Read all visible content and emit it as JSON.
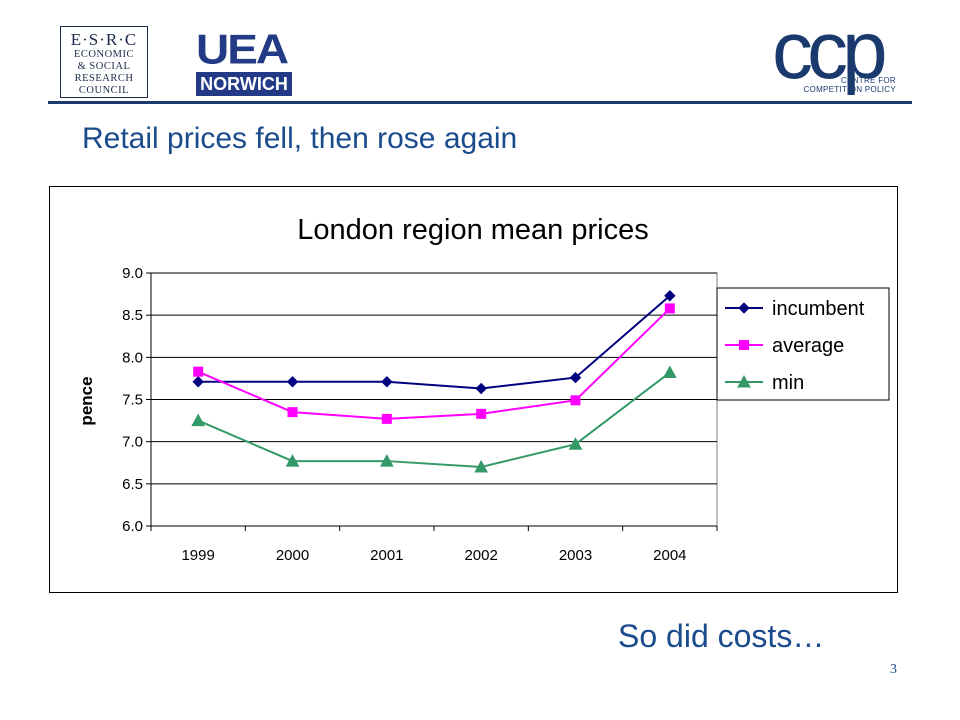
{
  "logos": {
    "esrc": {
      "line1": "E·S·R·C",
      "line2": "ECONOMIC",
      "line3": "& SOCIAL",
      "line4": "RESEARCH",
      "line5": "COUNCIL"
    },
    "uea": {
      "mark": "UEA",
      "band": "NORWICH"
    },
    "ccp": {
      "mark": "ccp",
      "sub_line1": "CENTRE FOR",
      "sub_line2": "COMPETITION POLICY"
    }
  },
  "slide": {
    "title": "Retail prices fell, then rose again",
    "caption": "So did costs…",
    "page_number": "3"
  },
  "colors": {
    "title_blue": "#1a4b8c",
    "incumbent": "#000080",
    "average": "#ff00ff",
    "min": "#339966"
  },
  "chart_data": {
    "type": "line",
    "title": "London region mean prices",
    "xlabel": "",
    "ylabel": "pence",
    "categories": [
      "1999",
      "2000",
      "2001",
      "2002",
      "2003",
      "2004"
    ],
    "ylim": [
      6.0,
      9.0
    ],
    "yticks": [
      "6.0",
      "6.5",
      "7.0",
      "7.5",
      "8.0",
      "8.5",
      "9.0"
    ],
    "grid": true,
    "legend_position": "right",
    "series": [
      {
        "name": "incumbent",
        "marker": "diamond",
        "color": "#000080",
        "values": [
          7.71,
          7.71,
          7.71,
          7.63,
          7.76,
          8.73
        ]
      },
      {
        "name": "average",
        "marker": "square",
        "color": "#ff00ff",
        "values": [
          7.83,
          7.35,
          7.27,
          7.33,
          7.49,
          8.58
        ]
      },
      {
        "name": "min",
        "marker": "triangle",
        "color": "#339966",
        "values": [
          7.25,
          6.77,
          6.77,
          6.7,
          6.97,
          7.82
        ]
      }
    ]
  }
}
